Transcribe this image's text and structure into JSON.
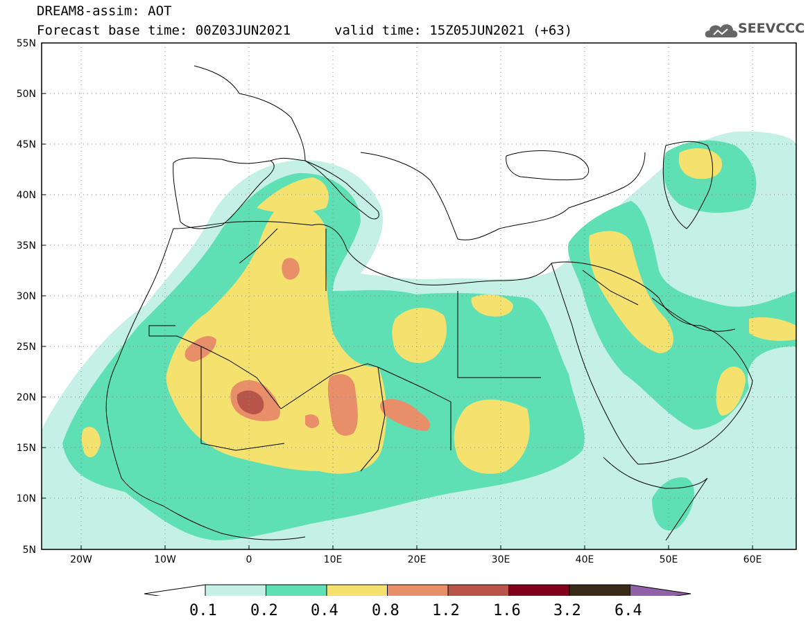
{
  "header": {
    "title": "DREAM8-assim: AOT",
    "base_time": "Forecast base time: 00Z03JUN2021",
    "valid_time": "valid time: 15Z05JUN2021 (+63)"
  },
  "logo": {
    "text": "SEEVCCC",
    "icon": "cloud-icon"
  },
  "map": {
    "lon_range": [
      -25,
      65
    ],
    "lat_range": [
      5,
      55
    ],
    "lat_labels": [
      "55N",
      "50N",
      "45N",
      "40N",
      "35N",
      "30N",
      "25N",
      "20N",
      "15N",
      "10N",
      "5N"
    ],
    "lon_labels": [
      "20W",
      "10W",
      "0",
      "10E",
      "20E",
      "30E",
      "40E",
      "50E",
      "60E"
    ],
    "colors": {
      "c1": "#c4f0e6",
      "c2": "#5ee0b4",
      "c3": "#f5e26e",
      "c4": "#e88f6a",
      "c5": "#b8544a"
    }
  },
  "colorbar": {
    "labels": [
      "0.1",
      "0.2",
      "0.4",
      "0.8",
      "1.2",
      "1.6",
      "3.2",
      "6.4"
    ],
    "colors": [
      "#c4f0e6",
      "#5ee0b4",
      "#f5e26e",
      "#e88f6a",
      "#b8544a",
      "#80001c",
      "#3a2a18"
    ],
    "under_color": "#ffffff",
    "over_color": "#9060a8"
  }
}
